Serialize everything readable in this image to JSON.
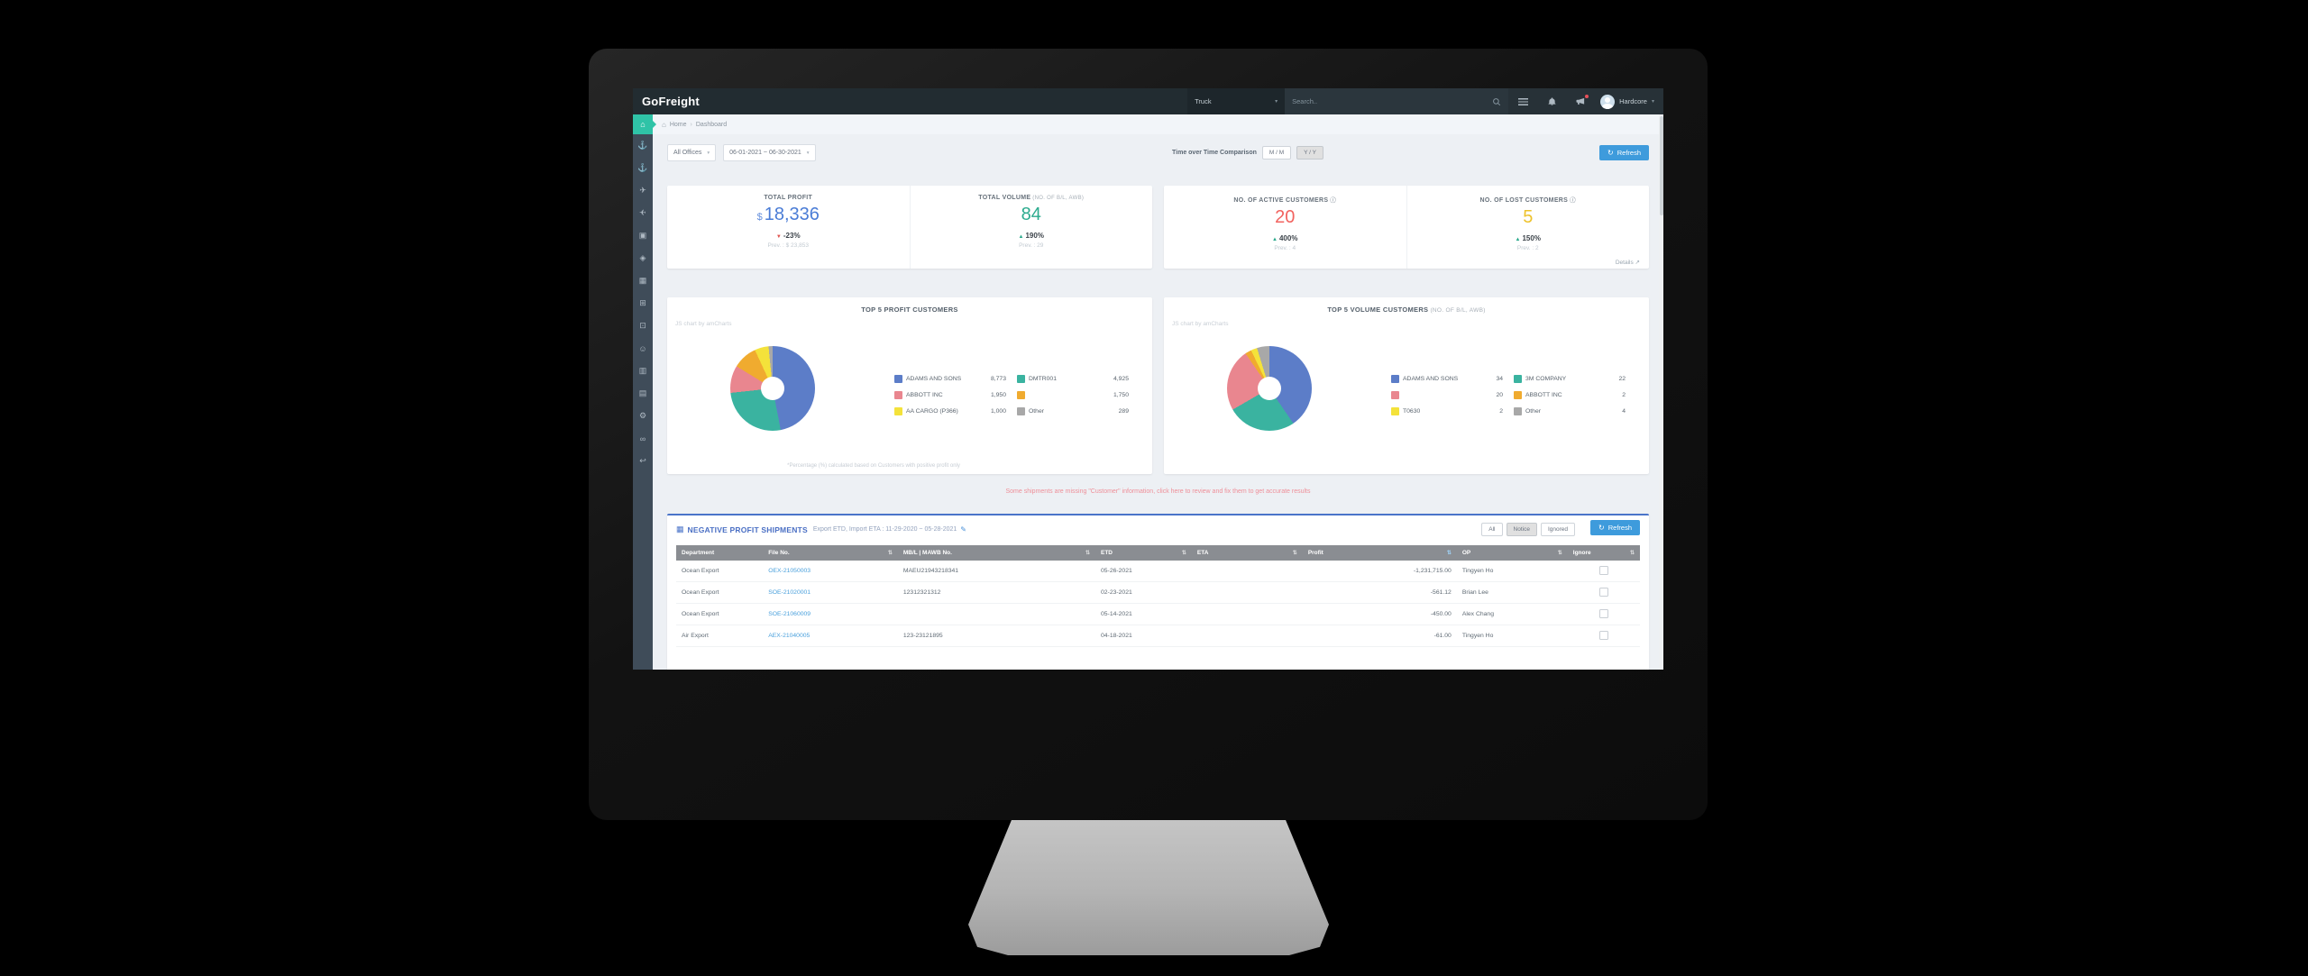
{
  "nav": {
    "logo": "GoFreight",
    "scope": "Truck",
    "search_placeholder": "Search..",
    "user_name": "Hardcore"
  },
  "breadcrumb": {
    "home": "Home",
    "current": "Dashboard"
  },
  "sidebar": {
    "items": [
      {
        "name": "home",
        "glyph": "⌂",
        "active": true
      },
      {
        "name": "ocean-import",
        "glyph": "⚓"
      },
      {
        "name": "ocean-export",
        "glyph": "⚓"
      },
      {
        "name": "air-import",
        "glyph": "✈"
      },
      {
        "name": "air-export",
        "glyph": "✈",
        "flip": true
      },
      {
        "name": "trucking",
        "glyph": "▣"
      },
      {
        "name": "misc-shipment",
        "glyph": "◈"
      },
      {
        "name": "warehouse",
        "glyph": "▦"
      },
      {
        "name": "accounting",
        "glyph": "⊞"
      },
      {
        "name": "quotation",
        "glyph": "⊡"
      },
      {
        "name": "customers",
        "glyph": "☺"
      },
      {
        "name": "reports",
        "glyph": "▥"
      },
      {
        "name": "documents",
        "glyph": "▤"
      },
      {
        "name": "settings",
        "glyph": "⚙"
      },
      {
        "name": "integrations",
        "glyph": "∞"
      },
      {
        "name": "exit",
        "glyph": "↩"
      }
    ]
  },
  "filters": {
    "office": "All Offices",
    "date_range": "06-01-2021 ~ 06-30-2021",
    "tot_label": "Time over Time Comparison",
    "mm": "M / M",
    "yy": "Y / Y",
    "refresh": "Refresh"
  },
  "kpis": [
    {
      "slug": "total-profit",
      "title": "TOTAL PROFIT",
      "prefix": "$",
      "value": "18,336",
      "color": "#4a7cd6",
      "delta": "-23%",
      "delta_dir": "down",
      "prev": "Prev. : $ 23,853"
    },
    {
      "slug": "total-volume",
      "title": "TOTAL VOLUME",
      "title_suffix": "(NO. OF B/L, AWB)",
      "value": "84",
      "color": "#2bab8e",
      "delta": "190%",
      "delta_dir": "up",
      "prev": "Prev. : 29"
    },
    {
      "slug": "active-customers",
      "title": "NO. OF ACTIVE CUSTOMERS",
      "info": true,
      "value": "20",
      "color": "#f2635f",
      "delta": "400%",
      "delta_dir": "up",
      "prev": "Prev. : 4"
    },
    {
      "slug": "lost-customers",
      "title": "NO. OF LOST CUSTOMERS",
      "info": true,
      "value": "5",
      "color": "#eec32d",
      "delta": "150%",
      "delta_dir": "up",
      "prev": "Prev. : 2"
    }
  ],
  "details_label": "Details",
  "chart_data": [
    {
      "type": "pie",
      "slug": "profit-customers",
      "title": "TOP 5 PROFIT CUSTOMERS",
      "title_suffix": "",
      "watermark": "JS chart by amCharts",
      "legend_position": "right",
      "series": [
        {
          "label": "ADAMS AND SONS",
          "value": 8773,
          "color": "#5c7dc8"
        },
        {
          "label": "DMTR001",
          "value": 4925,
          "color": "#3ab3a0"
        },
        {
          "label": "ABBOTT INC",
          "value": 1950,
          "color": "#e9868f"
        },
        {
          "label": "",
          "value": 1750,
          "color": "#f0ab2f"
        },
        {
          "label": "AA CARGO (P366)",
          "value": 1000,
          "color": "#f4e23a"
        },
        {
          "label": "Other",
          "value": 289,
          "color": "#a8a8a8"
        }
      ],
      "footnote": "*Percentage (%) calculated based on Customers with positive profit only"
    },
    {
      "type": "pie",
      "slug": "volume-customers",
      "title": "TOP 5 VOLUME CUSTOMERS",
      "title_suffix": "(NO. OF B/L, AWB)",
      "watermark": "JS chart by amCharts",
      "legend_position": "right",
      "series": [
        {
          "label": "ADAMS AND SONS",
          "value": 34,
          "color": "#5c7dc8"
        },
        {
          "label": "3M COMPANY",
          "value": 22,
          "color": "#3ab3a0"
        },
        {
          "label": "",
          "value": 20,
          "color": "#e9868f"
        },
        {
          "label": "ABBOTT INC",
          "value": 2,
          "color": "#f0ab2f"
        },
        {
          "label": "T0630",
          "value": 2,
          "color": "#f4e23a"
        },
        {
          "label": "Other",
          "value": 4,
          "color": "#a8a8a8"
        }
      ],
      "footnote": ""
    }
  ],
  "warning": "Some shipments are missing \"Customer\" information, click here to review and fix them to get accurate results",
  "shipments": {
    "title": "NEGATIVE PROFIT SHIPMENTS",
    "subtitle": "Export ETD, Import ETA : 11-29-2020 ~ 05-28-2021",
    "filter_all": "All",
    "filter_notice": "Notice",
    "filter_ignored": "Ignored",
    "refresh": "Refresh",
    "columns": [
      "Department",
      "File No.",
      "MB/L | MAWB No.",
      "ETD",
      "ETA",
      "Profit",
      "OP",
      "Ignore"
    ],
    "rows": [
      {
        "department": "Ocean Export",
        "file_no": "OEX-21050003",
        "mbl": "MAEU21943218341",
        "etd": "05-26-2021",
        "eta": "",
        "profit": "-1,231,715.00",
        "op": "Tingyen Ho"
      },
      {
        "department": "Ocean Export",
        "file_no": "SOE-21020001",
        "mbl": "12312321312",
        "etd": "02-23-2021",
        "eta": "",
        "profit": "-561.12",
        "op": "Brian Lee"
      },
      {
        "department": "Ocean Export",
        "file_no": "SOE-21060009",
        "mbl": "",
        "etd": "05-14-2021",
        "eta": "",
        "profit": "-450.00",
        "op": "Alex Chang"
      },
      {
        "department": "Air Export",
        "file_no": "AEX-21040005",
        "mbl": "123-23121895",
        "etd": "04-18-2021",
        "eta": "",
        "profit": "-61.00",
        "op": "Tingyen Ho"
      }
    ]
  },
  "colors": {
    "accent_blue": "#3e9bdc",
    "active_green": "#2fc3a7",
    "up_green": "#2aa98c",
    "down_red": "#e0524d",
    "warning_red": "#ee8f99"
  }
}
